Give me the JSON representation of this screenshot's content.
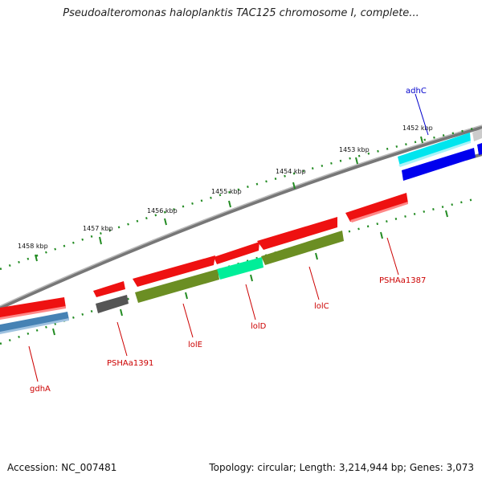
{
  "header": {
    "title": "Pseudoalteromonas haloplanktis TAC125 chromosome I, complete..."
  },
  "footer": {
    "accession": "Accession: NC_007481",
    "summary": "Topology: circular; Length: 3,214,944 bp; Genes: 3,073"
  },
  "scale": {
    "units": [
      "1458 kbp",
      "1457 kbp",
      "1456 kbp",
      "1455 kbp",
      "1454 kbp",
      "1453 kbp",
      "1452 kbp"
    ]
  },
  "genes": [
    {
      "name": "adhC",
      "label_color": "#0000cc",
      "bar_color": "#00e5ee"
    },
    {
      "name": "PSHAa1387",
      "label_color": "#cc0000",
      "bar_color": "#ee1111"
    },
    {
      "name": "lolC",
      "label_color": "#cc0000",
      "bar_color": "#6b8e23"
    },
    {
      "name": "lolD",
      "label_color": "#cc0000",
      "bar_color": "#00ee99"
    },
    {
      "name": "lolE",
      "label_color": "#cc0000",
      "bar_color": "#6b8e23"
    },
    {
      "name": "PSHAa1391",
      "label_color": "#cc0000",
      "bar_color": "#555555"
    },
    {
      "name": "gdhA",
      "label_color": "#cc0000",
      "bar_color": "#4682b4"
    }
  ],
  "colors": {
    "backbone": "#888888",
    "tick": "#228b22",
    "forward_gene": "#ee1111",
    "reverse_blue": "#0000ee"
  }
}
